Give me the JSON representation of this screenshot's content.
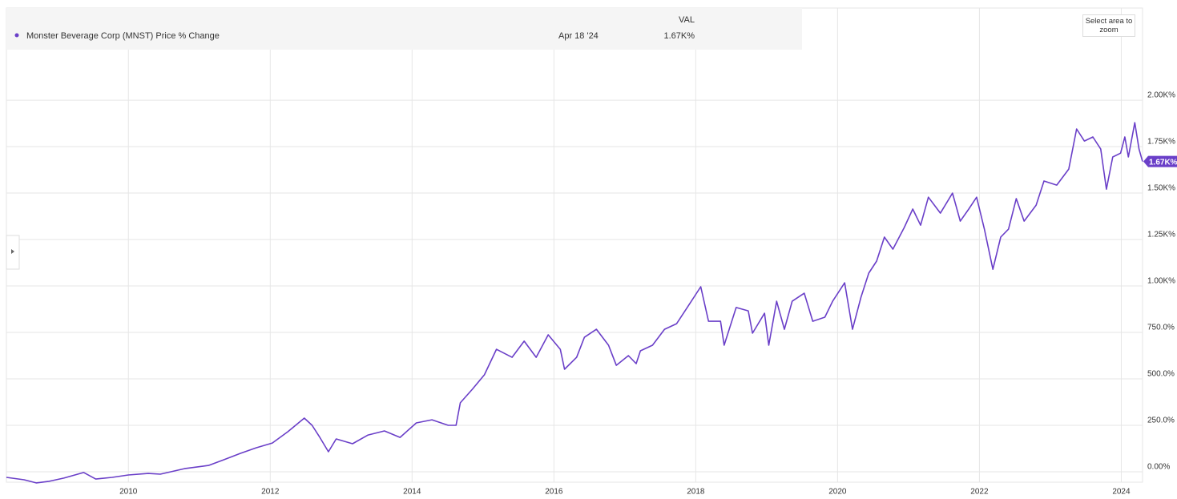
{
  "chart_data": {
    "type": "line",
    "series": [
      {
        "name": "Monster Beverage Corp (MNST) Price % Change",
        "color": "#6a3fc8",
        "x": [
          2008.28,
          2008.53,
          2008.7,
          2008.87,
          2009.09,
          2009.37,
          2009.54,
          2009.77,
          2010.0,
          2010.28,
          2010.45,
          2010.79,
          2011.13,
          2011.35,
          2011.58,
          2011.8,
          2012.03,
          2012.25,
          2012.48,
          2012.59,
          2012.7,
          2012.82,
          2012.93,
          2013.16,
          2013.38,
          2013.61,
          2013.83,
          2014.06,
          2014.28,
          2014.51,
          2014.62,
          2014.68,
          2014.85,
          2015.02,
          2015.19,
          2015.41,
          2015.58,
          2015.75,
          2015.92,
          2016.09,
          2016.15,
          2016.32,
          2016.43,
          2016.6,
          2016.77,
          2016.88,
          2017.05,
          2017.16,
          2017.22,
          2017.39,
          2017.56,
          2017.73,
          2017.9,
          2018.07,
          2018.18,
          2018.35,
          2018.4,
          2018.57,
          2018.74,
          2018.8,
          2018.97,
          2019.03,
          2019.14,
          2019.25,
          2019.36,
          2019.53,
          2019.65,
          2019.82,
          2019.93,
          2020.1,
          2020.21,
          2020.33,
          2020.44,
          2020.55,
          2020.66,
          2020.78,
          2020.94,
          2021.06,
          2021.17,
          2021.28,
          2021.45,
          2021.62,
          2021.73,
          2021.85,
          2021.96,
          2022.07,
          2022.19,
          2022.3,
          2022.41,
          2022.52,
          2022.63,
          2022.8,
          2022.91,
          2023.09,
          2023.26,
          2023.37,
          2023.48,
          2023.6,
          2023.71,
          2023.79,
          2023.88,
          2023.99,
          2024.05,
          2024.1,
          2024.19,
          2024.25,
          2024.3
        ],
        "values": [
          -30,
          -43,
          -60,
          -52,
          -34,
          -4,
          -39,
          -30,
          -17,
          -9,
          -13,
          17,
          34,
          65,
          99,
          129,
          155,
          216,
          289,
          250,
          185,
          108,
          177,
          151,
          198,
          220,
          185,
          263,
          280,
          250,
          250,
          371,
          444,
          522,
          659,
          616,
          703,
          616,
          737,
          659,
          552,
          616,
          724,
          767,
          681,
          573,
          625,
          582,
          651,
          681,
          767,
          797,
          896,
          996,
          810,
          810,
          681,
          884,
          866,
          746,
          853,
          681,
          918,
          767,
          918,
          961,
          810,
          832,
          918,
          1017,
          767,
          940,
          1069,
          1134,
          1263,
          1198,
          1315,
          1414,
          1327,
          1478,
          1392,
          1500,
          1349,
          1414,
          1478,
          1306,
          1090,
          1263,
          1306,
          1470,
          1349,
          1435,
          1565,
          1543,
          1629,
          1845,
          1780,
          1802,
          1737,
          1521,
          1694,
          1715,
          1802,
          1694,
          1879,
          1737,
          1670
        ]
      }
    ],
    "xlim": [
      2008.28,
      2024.3
    ],
    "xticks": [
      2010,
      2012,
      2014,
      2016,
      2018,
      2020,
      2022,
      2024
    ],
    "ylim": [
      -56,
      2246
    ],
    "yticks": [
      {
        "value": 0,
        "label": "0.00%"
      },
      {
        "value": 250,
        "label": "250.0%"
      },
      {
        "value": 500,
        "label": "500.0%"
      },
      {
        "value": 750,
        "label": "750.0%"
      },
      {
        "value": 1000,
        "label": "1.00K%"
      },
      {
        "value": 1250,
        "label": "1.25K%"
      },
      {
        "value": 1500,
        "label": "1.50K%"
      },
      {
        "value": 1750,
        "label": "1.75K%"
      },
      {
        "value": 2000,
        "label": "2.00K%"
      }
    ],
    "grid": true,
    "tooltip": {
      "header": "VAL",
      "date": "Apr 18 '24",
      "value": 1670,
      "label": "1.67K%"
    },
    "zoom_button": "Select area to zoom"
  }
}
